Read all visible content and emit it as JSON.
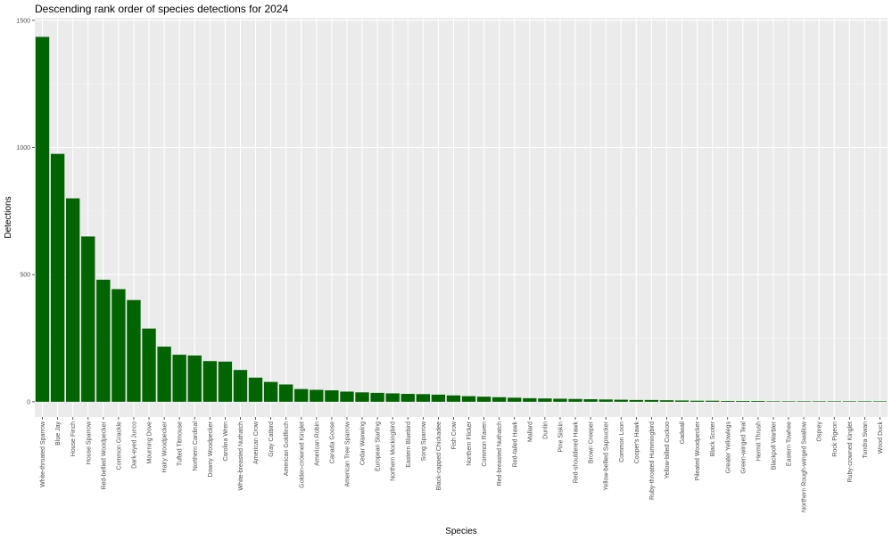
{
  "chart_data": {
    "type": "bar",
    "title": "Descending rank order of species detections for 2024",
    "xlabel": "Species",
    "ylabel": "Detections",
    "ylim": [
      -60,
      1510
    ],
    "yticks": [
      0,
      500,
      1000,
      1500
    ],
    "grid": true,
    "legend": "none",
    "bar_color": "#006400",
    "panel_color": "#ebebeb",
    "categories": [
      "White-throated Sparrow",
      "Blue Jay",
      "House Finch",
      "House Sparrow",
      "Red-bellied Woodpecker",
      "Common Grackle",
      "Dark-eyed Junco",
      "Mourning Dove",
      "Hairy Woodpecker",
      "Tufted Titmouse",
      "Northern Cardinal",
      "Downy Woodpecker",
      "Carolina Wren",
      "White-breasted Nuthatch",
      "American Crow",
      "Gray Catbird",
      "American Goldfinch",
      "Golden-crowned Kinglet",
      "American Robin",
      "Canada Goose",
      "American Tree Sparrow",
      "Cedar Waxwing",
      "European Starling",
      "Northern Mockingbird",
      "Eastern Bluebird",
      "Song Sparrow",
      "Black-capped Chickadee",
      "Fish Crow",
      "Northern Flicker",
      "Common Raven",
      "Red-breasted Nuthatch",
      "Red-tailed Hawk",
      "Mallard",
      "Dunlin",
      "Pine Siskin",
      "Red-shouldered Hawk",
      "Brown Creeper",
      "Yellow-bellied Sapsucker",
      "Common Loon",
      "Cooper's Hawk",
      "Ruby-throated Hummingbird",
      "Yellow-billed Cuckoo",
      "Gadwall",
      "Pileated Woodpecker",
      "Black Scoter",
      "Greater Yellowlegs",
      "Green-winged Teal",
      "Hermit Thrush",
      "Blackpoll Warbler",
      "Eastern Towhee",
      "Northern Rough-winged Swallow",
      "Osprey",
      "Rock Pigeon",
      "Ruby-crowned Kinglet",
      "Tundra Swan",
      "Wood Duck"
    ],
    "values": [
      1435,
      975,
      800,
      650,
      480,
      443,
      400,
      288,
      217,
      185,
      182,
      160,
      158,
      125,
      95,
      78,
      68,
      50,
      47,
      45,
      40,
      37,
      35,
      33,
      31,
      30,
      28,
      25,
      22,
      20,
      18,
      16,
      14,
      13,
      12,
      11,
      10,
      9,
      8,
      7,
      7,
      6,
      5,
      4,
      4,
      3,
      3,
      3,
      2,
      2,
      2,
      2,
      2,
      2,
      2,
      2
    ]
  }
}
